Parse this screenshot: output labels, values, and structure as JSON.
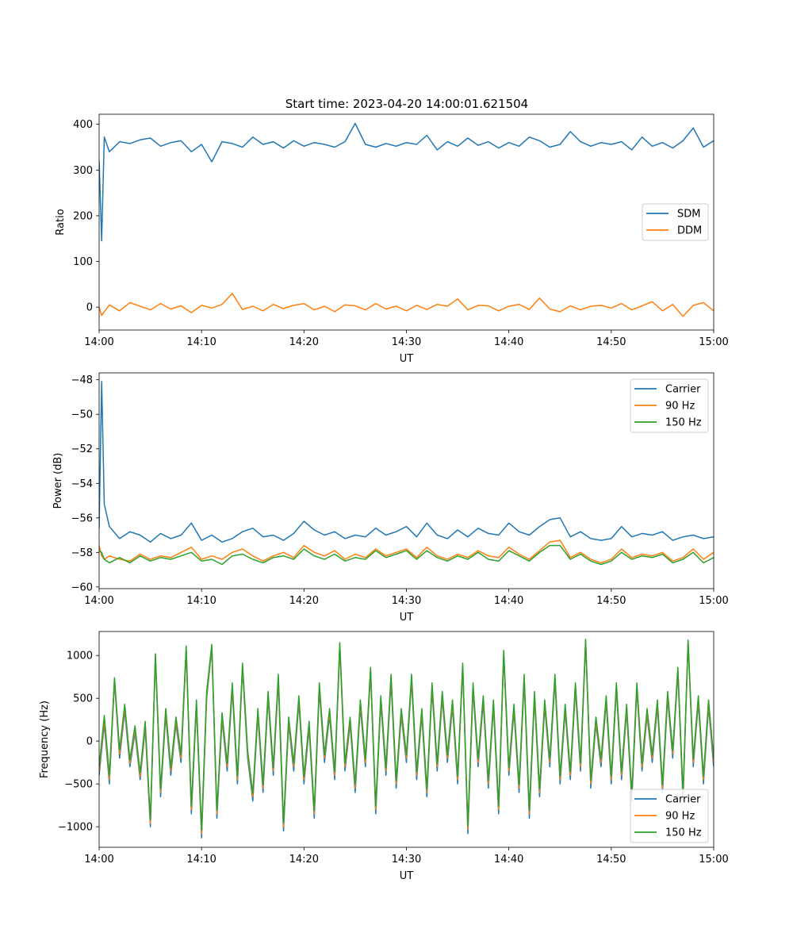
{
  "figure": {
    "title": "Start time: 2023-04-20 14:00:01.621504"
  },
  "chart_data": [
    {
      "type": "line",
      "title": "Start time: 2023-04-20 14:00:01.621504",
      "xlabel": "UT",
      "ylabel": "Ratio",
      "x_ticks": [
        "14:00",
        "14:10",
        "14:20",
        "14:30",
        "14:40",
        "14:50",
        "15:00"
      ],
      "y_ticks": [
        "0",
        "100",
        "200",
        "300",
        "400"
      ],
      "y_tick_values": [
        0,
        100,
        200,
        300,
        400
      ],
      "xlim_minutes": [
        0,
        60
      ],
      "ylim": [
        -50,
        422
      ],
      "legend": "center-right",
      "x_minutes": [
        0,
        0.25,
        0.5,
        1,
        2,
        3,
        4,
        5,
        6,
        7,
        8,
        9,
        10,
        11,
        12,
        13,
        14,
        15,
        16,
        17,
        18,
        19,
        20,
        21,
        22,
        23,
        24,
        25,
        26,
        27,
        28,
        29,
        30,
        31,
        32,
        33,
        34,
        35,
        36,
        37,
        38,
        39,
        40,
        41,
        42,
        43,
        44,
        45,
        46,
        47,
        48,
        49,
        50,
        51,
        52,
        53,
        54,
        55,
        56,
        57,
        58,
        59,
        60
      ],
      "series": [
        {
          "name": "SDM",
          "color": "#1f77b4",
          "values": [
            320,
            145,
            372,
            340,
            362,
            358,
            366,
            370,
            352,
            360,
            364,
            340,
            356,
            318,
            362,
            358,
            350,
            372,
            356,
            362,
            348,
            364,
            352,
            360,
            356,
            350,
            362,
            402,
            356,
            350,
            358,
            352,
            360,
            356,
            376,
            344,
            362,
            352,
            370,
            354,
            362,
            348,
            360,
            352,
            372,
            364,
            350,
            356,
            384,
            362,
            352,
            360,
            356,
            362,
            344,
            372,
            352,
            360,
            348,
            364,
            392,
            350,
            364
          ]
        },
        {
          "name": "DDM",
          "color": "#ff7f0e",
          "values": [
            0,
            -18,
            -10,
            5,
            -8,
            10,
            2,
            -6,
            8,
            -4,
            3,
            -12,
            4,
            -2,
            6,
            30,
            -5,
            2,
            -8,
            6,
            -3,
            4,
            8,
            -6,
            2,
            -10,
            5,
            3,
            -6,
            8,
            -4,
            2,
            -8,
            4,
            -5,
            6,
            2,
            18,
            -6,
            4,
            3,
            -8,
            2,
            6,
            -5,
            20,
            -4,
            -10,
            3,
            -6,
            2,
            4,
            -2,
            8,
            -6,
            3,
            12,
            -8,
            6,
            -20,
            4,
            10,
            -8
          ]
        }
      ]
    },
    {
      "type": "line",
      "title": "",
      "xlabel": "UT",
      "ylabel": "Power (dB)",
      "x_ticks": [
        "14:00",
        "14:10",
        "14:20",
        "14:30",
        "14:40",
        "14:50",
        "15:00"
      ],
      "y_ticks": [
        "−60",
        "−58",
        "−56",
        "−54",
        "−52",
        "−50",
        "−48"
      ],
      "y_tick_values": [
        -60,
        -58,
        -56,
        -54,
        -52,
        -50,
        -48
      ],
      "xlim_minutes": [
        0,
        60
      ],
      "ylim": [
        -60.1,
        -47.6
      ],
      "legend": "top-right",
      "x_minutes": [
        0,
        0.25,
        0.5,
        1,
        2,
        3,
        4,
        5,
        6,
        7,
        8,
        9,
        10,
        11,
        12,
        13,
        14,
        15,
        16,
        17,
        18,
        19,
        20,
        21,
        22,
        23,
        24,
        25,
        26,
        27,
        28,
        29,
        30,
        31,
        32,
        33,
        34,
        35,
        36,
        37,
        38,
        39,
        40,
        41,
        42,
        43,
        44,
        45,
        46,
        47,
        48,
        49,
        50,
        51,
        52,
        53,
        54,
        55,
        56,
        57,
        58,
        59,
        60
      ],
      "series": [
        {
          "name": "Carrier",
          "color": "#1f77b4",
          "values": [
            -56.6,
            -48.1,
            -55.2,
            -56.5,
            -57.2,
            -56.8,
            -57.0,
            -57.4,
            -56.9,
            -57.2,
            -57.0,
            -56.3,
            -57.3,
            -57.0,
            -57.4,
            -57.2,
            -56.8,
            -56.6,
            -57.1,
            -57.0,
            -57.3,
            -56.9,
            -56.2,
            -56.7,
            -57.0,
            -56.8,
            -57.2,
            -57.0,
            -57.1,
            -56.6,
            -57.0,
            -56.8,
            -56.5,
            -57.1,
            -56.3,
            -57.0,
            -57.2,
            -56.7,
            -57.1,
            -56.6,
            -56.9,
            -57.0,
            -56.3,
            -56.8,
            -57.0,
            -56.5,
            -56.1,
            -56.0,
            -57.1,
            -56.8,
            -57.2,
            -57.3,
            -57.2,
            -56.5,
            -57.1,
            -56.9,
            -57.0,
            -56.8,
            -57.3,
            -57.1,
            -57.0,
            -57.2,
            -57.1
          ]
        },
        {
          "name": "90 Hz",
          "color": "#ff7f0e",
          "values": [
            -57.6,
            -58.2,
            -58.4,
            -58.2,
            -58.4,
            -58.5,
            -58.1,
            -58.4,
            -58.2,
            -58.3,
            -58.0,
            -57.7,
            -58.4,
            -58.2,
            -58.4,
            -58.0,
            -57.8,
            -58.2,
            -58.5,
            -58.2,
            -58.0,
            -58.3,
            -57.6,
            -58.0,
            -58.2,
            -57.9,
            -58.4,
            -58.1,
            -58.3,
            -57.8,
            -58.2,
            -58.0,
            -57.8,
            -58.3,
            -57.7,
            -58.2,
            -58.4,
            -58.1,
            -58.3,
            -57.9,
            -58.2,
            -58.3,
            -57.7,
            -58.1,
            -58.4,
            -57.9,
            -57.4,
            -57.3,
            -58.3,
            -58.0,
            -58.4,
            -58.6,
            -58.4,
            -57.8,
            -58.3,
            -58.1,
            -58.2,
            -58.0,
            -58.5,
            -58.3,
            -57.8,
            -58.4,
            -58.0
          ]
        },
        {
          "name": "150 Hz",
          "color": "#2ca02c",
          "values": [
            -57.9,
            -58.0,
            -58.4,
            -58.6,
            -58.3,
            -58.6,
            -58.2,
            -58.5,
            -58.3,
            -58.4,
            -58.2,
            -58.0,
            -58.5,
            -58.4,
            -58.7,
            -58.2,
            -58.1,
            -58.4,
            -58.6,
            -58.3,
            -58.2,
            -58.4,
            -57.8,
            -58.2,
            -58.4,
            -58.1,
            -58.5,
            -58.3,
            -58.4,
            -57.9,
            -58.3,
            -58.1,
            -57.9,
            -58.4,
            -57.9,
            -58.3,
            -58.5,
            -58.2,
            -58.4,
            -58.0,
            -58.4,
            -58.5,
            -57.9,
            -58.2,
            -58.5,
            -58.0,
            -57.6,
            -57.6,
            -58.4,
            -58.1,
            -58.5,
            -58.7,
            -58.5,
            -58.0,
            -58.4,
            -58.2,
            -58.3,
            -58.1,
            -58.6,
            -58.4,
            -58.0,
            -58.6,
            -58.3
          ]
        }
      ]
    },
    {
      "type": "line",
      "title": "",
      "xlabel": "UT",
      "ylabel": "Frequency (Hz)",
      "x_ticks": [
        "14:00",
        "14:10",
        "14:20",
        "14:30",
        "14:40",
        "14:50",
        "15:00"
      ],
      "y_ticks": [
        "−1000",
        "−500",
        "0",
        "500",
        "1000"
      ],
      "y_tick_values": [
        -1000,
        -500,
        0,
        500,
        1000
      ],
      "xlim_minutes": [
        0,
        60
      ],
      "ylim": [
        -1240,
        1280
      ],
      "legend": "bottom-right",
      "x_minutes": [
        0,
        0.5,
        1,
        1.5,
        2,
        2.5,
        3,
        3.5,
        4,
        4.5,
        5,
        5.5,
        6,
        6.5,
        7,
        7.5,
        8,
        8.5,
        9,
        9.5,
        10,
        10.5,
        11,
        11.5,
        12,
        12.5,
        13,
        13.5,
        14,
        14.5,
        15,
        15.5,
        16,
        16.5,
        17,
        17.5,
        18,
        18.5,
        19,
        19.5,
        20,
        20.5,
        21,
        21.5,
        22,
        22.5,
        23,
        23.5,
        24,
        24.5,
        25,
        25.5,
        26,
        26.5,
        27,
        27.5,
        28,
        28.5,
        29,
        29.5,
        30,
        30.5,
        31,
        31.5,
        32,
        32.5,
        33,
        33.5,
        34,
        34.5,
        35,
        35.5,
        36,
        36.5,
        37,
        37.5,
        38,
        38.5,
        39,
        39.5,
        40,
        40.5,
        41,
        41.5,
        42,
        42.5,
        43,
        43.5,
        44,
        44.5,
        45,
        45.5,
        46,
        46.5,
        47,
        47.5,
        48,
        48.5,
        49,
        49.5,
        50,
        50.5,
        51,
        51.5,
        52,
        52.5,
        53,
        53.5,
        54,
        54.5,
        55,
        55.5,
        56,
        56.5,
        57,
        57.5,
        58,
        58.5,
        59,
        59.5,
        60
      ],
      "series": [
        {
          "name": "Carrier",
          "color": "#1f77b4",
          "values": [
            -400,
            200,
            -500,
            700,
            -200,
            350,
            -300,
            100,
            -450,
            150,
            -1000,
            980,
            -650,
            300,
            -400,
            200,
            -250,
            1050,
            -850,
            400,
            -1130,
            500,
            1080,
            -900,
            250,
            -350,
            600,
            -500,
            850,
            -200,
            -700,
            300,
            -600,
            500,
            -400,
            700,
            -1050,
            200,
            -350,
            450,
            -500,
            150,
            -900,
            600,
            -250,
            300,
            -450,
            1100,
            -350,
            200,
            -600,
            400,
            -300,
            800,
            -850,
            450,
            -400,
            700,
            -550,
            300,
            -250,
            700,
            -450,
            300,
            -650,
            600,
            -350,
            500,
            -250,
            400,
            -500,
            850,
            -1080,
            600,
            -300,
            450,
            -550,
            400,
            -850,
            1000,
            -400,
            350,
            -600,
            700,
            -900,
            500,
            -650,
            400,
            -300,
            700,
            -500,
            350,
            -450,
            600,
            -350,
            1150,
            -550,
            200,
            -300,
            450,
            -500,
            600,
            -450,
            350,
            -700,
            600,
            -350,
            300,
            -250,
            400,
            -600,
            500,
            -200,
            800,
            -700,
            1150,
            -300,
            450,
            -500,
            400,
            -300
          ]
        },
        {
          "name": "90 Hz",
          "color": "#ff7f0e",
          "values": [
            -350,
            250,
            -450,
            720,
            -150,
            390,
            -260,
            140,
            -410,
            190,
            -960,
            1010,
            -600,
            340,
            -350,
            240,
            -200,
            1080,
            -800,
            440,
            -1080,
            540,
            1110,
            -850,
            290,
            -300,
            640,
            -450,
            880,
            -150,
            -650,
            340,
            -550,
            540,
            -350,
            740,
            -1000,
            240,
            -300,
            490,
            -450,
            190,
            -850,
            640,
            -200,
            340,
            -400,
            1130,
            -300,
            240,
            -550,
            440,
            -250,
            830,
            -800,
            490,
            -350,
            740,
            -500,
            340,
            -200,
            740,
            -400,
            340,
            -600,
            640,
            -300,
            540,
            -200,
            440,
            -450,
            880,
            -1030,
            640,
            -250,
            490,
            -500,
            440,
            -800,
            1030,
            -350,
            390,
            -550,
            740,
            -850,
            540,
            -600,
            440,
            -250,
            740,
            -450,
            390,
            -400,
            640,
            -300,
            1170,
            -500,
            240,
            -250,
            490,
            -450,
            640,
            -400,
            390,
            -650,
            640,
            -300,
            340,
            -200,
            440,
            -550,
            540,
            -150,
            830,
            -650,
            1170,
            -250,
            490,
            -450,
            440,
            -250
          ]
        },
        {
          "name": "150 Hz",
          "color": "#2ca02c",
          "values": [
            -300,
            300,
            -400,
            740,
            -100,
            430,
            -220,
            180,
            -370,
            230,
            -920,
            1020,
            -560,
            380,
            -310,
            280,
            -160,
            1110,
            -760,
            480,
            -1040,
            580,
            1130,
            -810,
            330,
            -260,
            680,
            -410,
            910,
            -110,
            -610,
            380,
            -510,
            580,
            -310,
            780,
            -960,
            280,
            -260,
            530,
            -410,
            230,
            -810,
            680,
            -160,
            380,
            -360,
            1150,
            -260,
            280,
            -510,
            480,
            -210,
            860,
            -760,
            530,
            -310,
            780,
            -460,
            380,
            -160,
            780,
            -360,
            380,
            -560,
            680,
            -260,
            580,
            -160,
            480,
            -410,
            910,
            -990,
            680,
            -210,
            530,
            -460,
            480,
            -760,
            1060,
            -310,
            430,
            -510,
            780,
            -810,
            580,
            -560,
            480,
            -210,
            780,
            -410,
            430,
            -360,
            680,
            -260,
            1190,
            -460,
            280,
            -210,
            530,
            -410,
            680,
            -360,
            430,
            -610,
            680,
            -260,
            380,
            -160,
            480,
            -510,
            580,
            -110,
            860,
            -610,
            1180,
            -210,
            530,
            -410,
            480,
            -210
          ]
        }
      ]
    }
  ]
}
